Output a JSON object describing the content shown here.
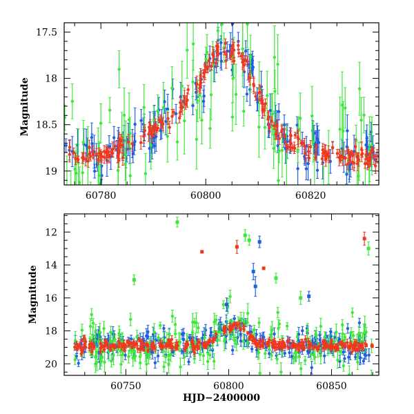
{
  "colors": {
    "blue": "#1f5fe0",
    "green": "#3ee83a",
    "red": "#f0381f",
    "black": "#000000"
  },
  "chart_data": [
    {
      "type": "scatter",
      "panel": "top",
      "title": "",
      "xlabel": "",
      "ylabel": "Magnitude",
      "xlim": [
        60773,
        60833
      ],
      "ylim": [
        19.15,
        17.4
      ],
      "y_inverted": true,
      "xticks": [
        60780,
        60800,
        60820
      ],
      "xtick_labels": [
        "60780",
        "60800",
        "60820"
      ],
      "yticks": [
        17.5,
        18,
        18.5,
        19
      ],
      "ytick_labels": [
        "17.5",
        "18",
        "18.5",
        "19"
      ],
      "grid": false,
      "legend": "none",
      "curve": {
        "x": [
          60773,
          60775,
          60780,
          60785,
          60790,
          60795,
          60798,
          60800,
          60802,
          60804,
          60806,
          60808,
          60810,
          60812,
          60815,
          60820,
          60825,
          60830,
          60833
        ],
        "y": [
          18.85,
          18.85,
          18.82,
          18.72,
          18.55,
          18.35,
          18.1,
          17.9,
          17.75,
          17.68,
          17.72,
          17.9,
          18.15,
          18.45,
          18.65,
          18.78,
          18.82,
          18.85,
          18.85
        ]
      },
      "series": [
        {
          "color": "blue",
          "x_range": [
            60773,
            60833
          ],
          "typical_error": 0.12,
          "scatter": 0.12,
          "density": 160
        },
        {
          "color": "green",
          "x_range": [
            60773,
            60833
          ],
          "typical_error": 0.25,
          "scatter": 0.35,
          "density": 110
        },
        {
          "color": "red",
          "x_range": [
            60773,
            60833
          ],
          "typical_error": 0.06,
          "scatter": 0.05,
          "density": 220
        }
      ]
    },
    {
      "type": "scatter",
      "panel": "bottom",
      "title": "",
      "xlabel": "HJD−2400000",
      "ylabel": "Magnitude",
      "xlim": [
        60720,
        60873
      ],
      "ylim": [
        20.7,
        10.9
      ],
      "y_inverted": true,
      "xticks": [
        60750,
        60800,
        60850
      ],
      "xtick_labels": [
        "60750",
        "60800",
        "60850"
      ],
      "yticks": [
        12,
        14,
        16,
        18,
        20
      ],
      "ytick_labels": [
        "12",
        "14",
        "16",
        "18",
        "20"
      ],
      "grid": false,
      "legend": "none",
      "curve": {
        "x": [
          60725,
          60750,
          60780,
          60790,
          60795,
          60800,
          60803,
          60806,
          60810,
          60815,
          60830,
          60870
        ],
        "y": [
          18.9,
          18.9,
          18.9,
          18.7,
          18.3,
          17.9,
          17.7,
          17.85,
          18.4,
          18.75,
          18.9,
          18.9
        ]
      },
      "series": [
        {
          "color": "blue",
          "x_range": [
            60725,
            60870
          ],
          "typical_error": 0.3,
          "scatter": 0.5,
          "density": 260
        },
        {
          "color": "green",
          "x_range": [
            60725,
            60870
          ],
          "typical_error": 0.4,
          "scatter": 0.8,
          "density": 220
        },
        {
          "color": "red",
          "x_range": [
            60725,
            60870
          ],
          "typical_error": 0.15,
          "scatter": 0.15,
          "density": 300
        }
      ],
      "outliers": [
        {
          "color": "green",
          "x": 60775,
          "y": 11.4,
          "err": 0.3
        },
        {
          "color": "green",
          "x": 60808,
          "y": 12.2,
          "err": 0.35
        },
        {
          "color": "green",
          "x": 60810,
          "y": 12.5,
          "err": 0.3
        },
        {
          "color": "green",
          "x": 60754,
          "y": 14.9,
          "err": 0.3
        },
        {
          "color": "green",
          "x": 60823,
          "y": 14.8,
          "err": 0.3
        },
        {
          "color": "green",
          "x": 60868,
          "y": 13.0,
          "err": 0.4
        },
        {
          "color": "green",
          "x": 60835,
          "y": 16.0,
          "err": 0.4
        },
        {
          "color": "red",
          "x": 60787,
          "y": 13.2,
          "err": 0.0
        },
        {
          "color": "red",
          "x": 60804,
          "y": 12.9,
          "err": 0.4
        },
        {
          "color": "red",
          "x": 60817,
          "y": 14.2,
          "err": 0.0
        },
        {
          "color": "red",
          "x": 60866,
          "y": 12.4,
          "err": 0.4
        },
        {
          "color": "blue",
          "x": 60815,
          "y": 12.6,
          "err": 0.35
        },
        {
          "color": "blue",
          "x": 60812,
          "y": 14.4,
          "err": 0.5
        },
        {
          "color": "blue",
          "x": 60813,
          "y": 15.3,
          "err": 0.6
        },
        {
          "color": "blue",
          "x": 60839,
          "y": 15.9,
          "err": 0.3
        },
        {
          "color": "blue",
          "x": 60799,
          "y": 16.4,
          "err": 0.4
        }
      ]
    }
  ]
}
